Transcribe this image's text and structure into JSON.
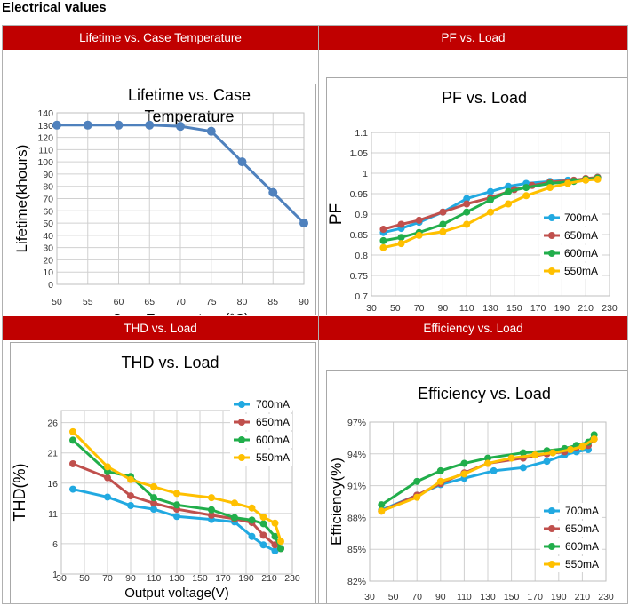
{
  "page_title": "Electrical values",
  "panels": [
    {
      "header": "Lifetime vs. Case Temperature"
    },
    {
      "header": "PF vs. Load"
    },
    {
      "header": "THD vs. Load"
    },
    {
      "header": "Efficiency vs. Load"
    }
  ],
  "chart_data": [
    {
      "type": "line",
      "title_lines": [
        "Lifetime vs. Case",
        "Temperature"
      ],
      "xlabel": "Case Temperature (°C)",
      "ylabel": "Lifetime(khours)",
      "xticks": [
        "50",
        "55",
        "60",
        "65",
        "70",
        "75",
        "80",
        "85",
        "90"
      ],
      "yticks": [
        "0",
        "10",
        "20",
        "30",
        "40",
        "50",
        "60",
        "70",
        "80",
        "90",
        "100",
        "110",
        "120",
        "130",
        "140"
      ],
      "xlim": [
        50,
        90
      ],
      "ylim": [
        0,
        140
      ],
      "grid": true,
      "series": [
        {
          "color": "#4f81bd",
          "x": [
            50,
            55,
            60,
            65,
            70,
            75,
            80,
            85,
            90
          ],
          "y": [
            130,
            130,
            130,
            130,
            129,
            125,
            100,
            75,
            50
          ]
        }
      ]
    },
    {
      "type": "line",
      "title": "PF vs. Load",
      "ylabel": "PF",
      "xticks": [
        "30",
        "50",
        "70",
        "90",
        "110",
        "130",
        "150",
        "170",
        "190",
        "210",
        "230"
      ],
      "yticks": [
        "0.7",
        "0.75",
        "0.8",
        "0.85",
        "0.9",
        "0.95",
        "1",
        "1.05",
        "1.1"
      ],
      "xlim": [
        30,
        230
      ],
      "ylim": [
        0.7,
        1.1
      ],
      "grid": true,
      "legend": "right",
      "series": [
        {
          "name": "700mA",
          "color": "#21a9e1",
          "x": [
            40,
            55,
            70,
            90,
            110,
            130,
            145,
            160,
            180,
            195,
            210,
            220
          ],
          "y": [
            0.855,
            0.865,
            0.88,
            0.905,
            0.938,
            0.955,
            0.968,
            0.975,
            0.98,
            0.983,
            0.985,
            0.99
          ]
        },
        {
          "name": "650mA",
          "color": "#c0504d",
          "x": [
            40,
            55,
            70,
            90,
            110,
            130,
            150,
            165,
            180,
            200,
            210,
            220
          ],
          "y": [
            0.863,
            0.875,
            0.885,
            0.905,
            0.925,
            0.94,
            0.96,
            0.97,
            0.978,
            0.983,
            0.987,
            0.99
          ]
        },
        {
          "name": "600mA",
          "color": "#21ae4b",
          "x": [
            40,
            55,
            70,
            90,
            110,
            130,
            145,
            160,
            180,
            200,
            210,
            220
          ],
          "y": [
            0.835,
            0.843,
            0.855,
            0.875,
            0.905,
            0.935,
            0.955,
            0.965,
            0.975,
            0.98,
            0.985,
            0.988
          ]
        },
        {
          "name": "550mA",
          "color": "#ffc000",
          "x": [
            40,
            55,
            70,
            90,
            110,
            130,
            145,
            160,
            180,
            195,
            210,
            220
          ],
          "y": [
            0.818,
            0.828,
            0.848,
            0.857,
            0.875,
            0.905,
            0.925,
            0.945,
            0.965,
            0.975,
            0.983,
            0.985
          ]
        }
      ]
    },
    {
      "type": "line",
      "title": "THD vs. Load",
      "xlabel": "Output voltage(V)",
      "ylabel": "THD(%)",
      "xticks": [
        "30",
        "50",
        "70",
        "90",
        "110",
        "130",
        "150",
        "170",
        "190",
        "210",
        "230"
      ],
      "yticks": [
        "1",
        "6",
        "11",
        "16",
        "21",
        "26"
      ],
      "xlim": [
        30,
        230
      ],
      "ylim": [
        1,
        28
      ],
      "grid": true,
      "legend": "top-right",
      "series": [
        {
          "name": "700mA",
          "color": "#21a9e1",
          "x": [
            40,
            70,
            90,
            110,
            130,
            160,
            180,
            195,
            205,
            215
          ],
          "y": [
            15,
            13.7,
            12.3,
            11.7,
            10.5,
            10,
            9.6,
            7.2,
            5.8,
            4.8
          ]
        },
        {
          "name": "650mA",
          "color": "#c0504d",
          "x": [
            40,
            70,
            90,
            110,
            130,
            160,
            180,
            195,
            205,
            215,
            220
          ],
          "y": [
            19.2,
            16.9,
            13.9,
            12.7,
            11.7,
            10.7,
            10.1,
            9.5,
            7.4,
            5.8,
            5.2
          ]
        },
        {
          "name": "600mA",
          "color": "#21ae4b",
          "x": [
            40,
            70,
            90,
            110,
            130,
            160,
            180,
            195,
            205,
            215,
            220
          ],
          "y": [
            23.1,
            17.9,
            17.1,
            13.6,
            12.4,
            11.6,
            10.3,
            9.9,
            9.3,
            7.2,
            5.2
          ]
        },
        {
          "name": "550mA",
          "color": "#ffc000",
          "x": [
            40,
            70,
            90,
            110,
            130,
            160,
            180,
            195,
            205,
            215,
            220
          ],
          "y": [
            24.5,
            18.7,
            16.6,
            15.4,
            14.3,
            13.6,
            12.7,
            11.9,
            10.4,
            9.4,
            6.4
          ]
        }
      ]
    },
    {
      "type": "line",
      "title": "Efficiency vs. Load",
      "ylabel": "Efficiency(%)",
      "xticks": [
        "30",
        "50",
        "70",
        "90",
        "110",
        "130",
        "150",
        "170",
        "190",
        "210",
        "230"
      ],
      "yticks": [
        "82%",
        "85%",
        "88%",
        "91%",
        "94%",
        "97%"
      ],
      "xlim": [
        30,
        230
      ],
      "ylim": [
        82,
        97
      ],
      "grid": true,
      "legend": "bottom-right",
      "series": [
        {
          "name": "700mA",
          "color": "#21a9e1",
          "x": [
            40,
            70,
            90,
            110,
            135,
            160,
            180,
            195,
            205,
            215
          ],
          "y": [
            88.7,
            90.1,
            91.1,
            91.7,
            92.4,
            92.7,
            93.3,
            93.9,
            94.2,
            94.4
          ]
        },
        {
          "name": "650mA",
          "color": "#c0504d",
          "x": [
            40,
            70,
            90,
            110,
            130,
            160,
            180,
            195,
            205,
            215,
            220
          ],
          "y": [
            88.6,
            90.1,
            91.2,
            92.2,
            93.1,
            93.6,
            94.0,
            94.2,
            94.6,
            94.8,
            95.4
          ]
        },
        {
          "name": "600mA",
          "color": "#21ae4b",
          "x": [
            40,
            70,
            90,
            110,
            130,
            160,
            180,
            195,
            205,
            215,
            220
          ],
          "y": [
            89.2,
            91.4,
            92.4,
            93.1,
            93.6,
            94.1,
            94.3,
            94.5,
            94.8,
            95.1,
            95.8
          ]
        },
        {
          "name": "550mA",
          "color": "#ffc000",
          "x": [
            40,
            70,
            90,
            110,
            130,
            150,
            170,
            185,
            200,
            210,
            220
          ],
          "y": [
            88.6,
            89.9,
            91.4,
            92.1,
            93.1,
            93.6,
            93.9,
            94.1,
            94.4,
            94.7,
            95.4
          ]
        }
      ]
    }
  ]
}
